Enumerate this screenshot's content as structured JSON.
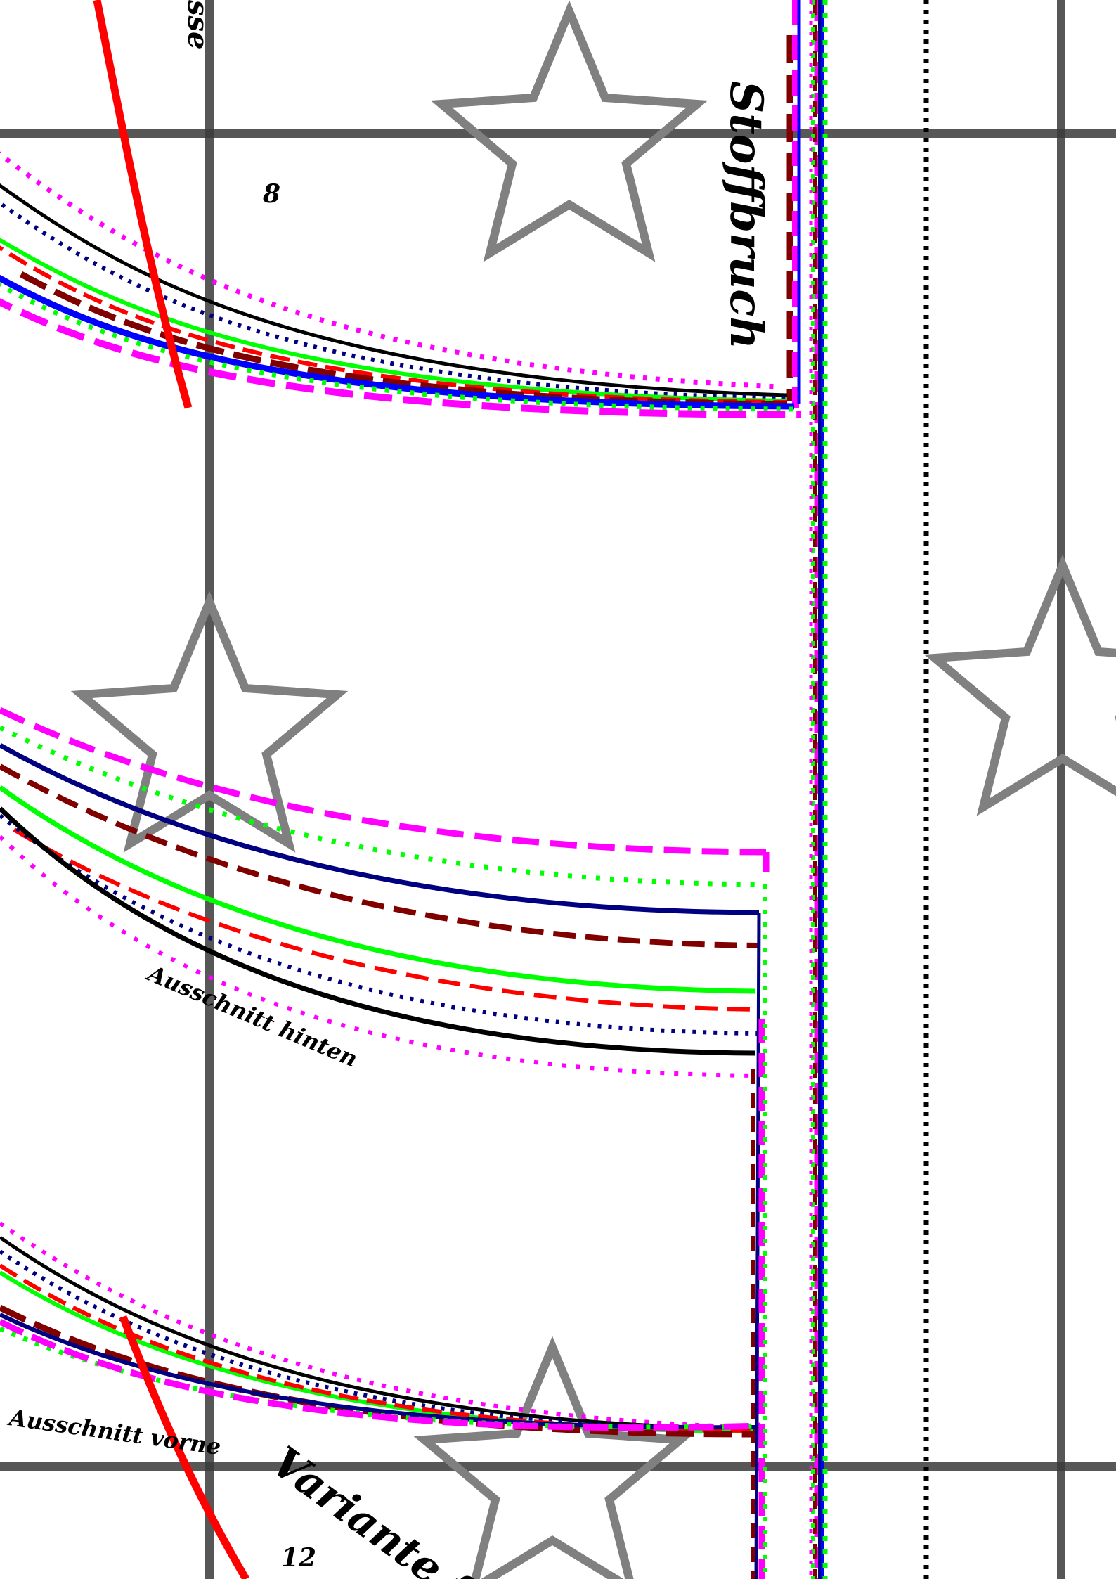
{
  "labels": {
    "fold": "Stoffbruch",
    "neckline_back": "Ausschnitt hinten",
    "neckline_front": "Ausschnitt vorne",
    "variant": "Variante fü",
    "page_num_top": "8",
    "page_num_bottom": "12",
    "edge_text_top": "sse"
  },
  "colors": {
    "grid": "#3a3a3a",
    "star": "#808080",
    "black": "#000000",
    "navy": "#000080",
    "blue": "#0000ff",
    "green": "#00ff00",
    "red": "#ff0000",
    "dark_red": "#800000",
    "magenta": "#ff00ff"
  }
}
